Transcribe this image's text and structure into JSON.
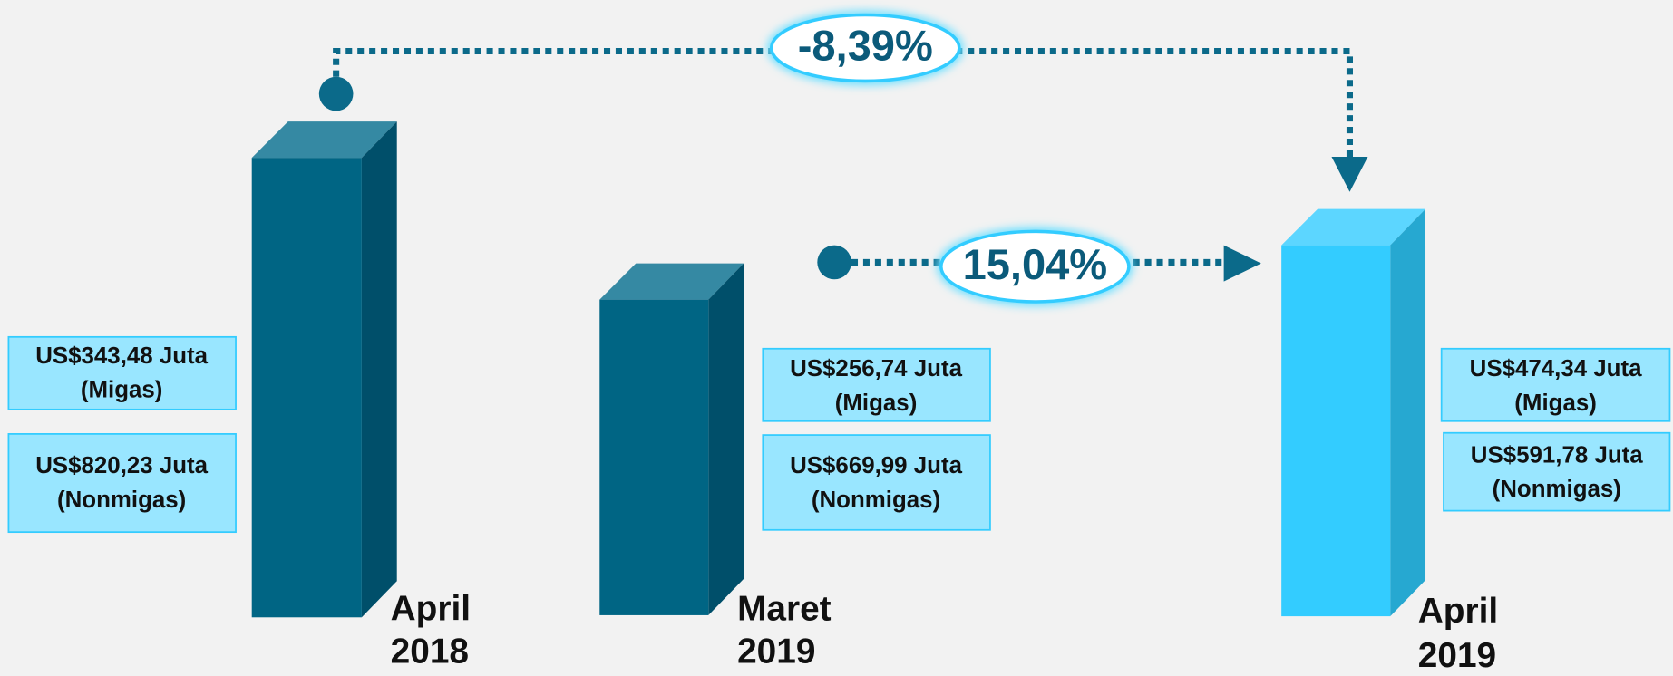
{
  "columns": [
    {
      "label": [
        "April",
        "2018"
      ],
      "boxes": [
        [
          "US$343,48 Juta",
          "(Migas)"
        ],
        [
          "US$820,23 Juta",
          "(Nonmigas)"
        ]
      ]
    },
    {
      "label": [
        "Maret",
        "2019"
      ],
      "boxes": [
        [
          "US$256,74 Juta",
          "(Migas)"
        ],
        [
          "US$669,99 Juta",
          "(Nonmigas)"
        ]
      ]
    },
    {
      "label": [
        "April",
        "2019"
      ],
      "boxes": [
        [
          "US$474,34 Juta",
          "(Migas)"
        ],
        [
          "US$591,78 Juta",
          "(Nonmigas)"
        ]
      ]
    }
  ],
  "changes": [
    {
      "label": "-8,39%"
    },
    {
      "label": "15,04%"
    }
  ]
}
